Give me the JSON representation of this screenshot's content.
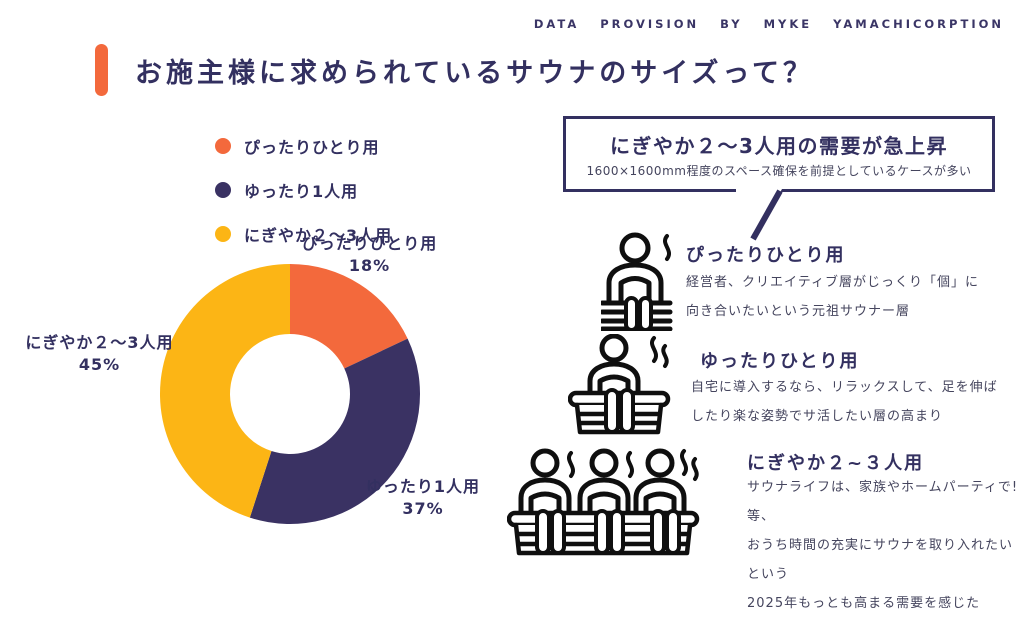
{
  "credit": "DATA PROVISION BY MYKE YAMACHICORPTION",
  "title": "お施主様に求められているサウナのサイズって？",
  "colors": {
    "navy": "#333060",
    "navy_slice": "#3A3263",
    "orange": "#F3693C",
    "yellow": "#FCB515",
    "icon_ink": "#0f0f0f",
    "body_text": "#45455e"
  },
  "legend": [
    {
      "label": "ぴったりひとり用",
      "color": "#F3693C"
    },
    {
      "label": "ゆったり1人用",
      "color": "#3A3263"
    },
    {
      "label": "にぎやか２～3人用",
      "color": "#FCB515"
    }
  ],
  "chart_data": {
    "type": "pie",
    "donut": true,
    "title": "お施主様に求められているサウナのサイズって？",
    "categories": [
      "ぴったりひとり用",
      "ゆったり1人用",
      "にぎやか２～3人用"
    ],
    "values": [
      18,
      37,
      45
    ],
    "unit": "%",
    "colors": [
      "#F3693C",
      "#3A3263",
      "#FCB515"
    ],
    "start_angle_deg_from_top": 0,
    "direction": "clockwise",
    "legend_position": "above-left",
    "labels_outside": true
  },
  "pie_labels": {
    "top": {
      "name": "ぴったりひとり用",
      "pct": "18%"
    },
    "right": {
      "name": "ゆったり1人用",
      "pct": "37%"
    },
    "left": {
      "name": "にぎやか２～3人用",
      "pct": "45%"
    }
  },
  "callout": {
    "title": "にぎやか２～3人用の需要が急上昇",
    "subtitle": "1600×1600mm程度のスペース確保を前提としているケースが多い"
  },
  "sections": [
    {
      "heading": "ぴったりひとり用",
      "icon": "sauna-one-person-icon",
      "lines": [
        "経営者、クリエイティブ層がじっくり「個」に",
        "向き合いたいという元祖サウナー層"
      ]
    },
    {
      "heading": "ゆったりひとり用",
      "icon": "sauna-one-person-relax-icon",
      "lines": [
        "自宅に導入するなら、リラックスして、足を伸ば",
        "したり楽な姿勢でサ活したい層の高まり"
      ]
    },
    {
      "heading": "にぎやか２~３人用",
      "icon": "sauna-three-person-icon",
      "lines": [
        "サウナライフは、家族やホームパーティで!等、",
        "おうち時間の充実にサウナを取り入れたいという",
        "2025年もっとも高まる需要を感じた"
      ]
    }
  ]
}
